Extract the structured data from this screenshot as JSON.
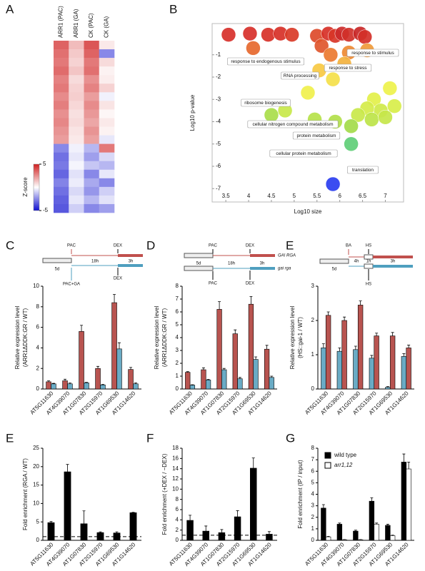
{
  "chart_data": [
    {
      "type": "heatmap",
      "panel": "A",
      "x": [
        "ARR1 (PAC)",
        "ARR1 (GA)",
        "CK (PAC)",
        "CK (GA)"
      ],
      "values": [
        [
          3.5,
          3.2,
          3,
          3.3,
          2.8,
          3,
          2.6,
          2.9,
          2.5,
          2.7,
          2.4,
          2.2,
          -2.5,
          -3,
          -2.8,
          -3.2,
          -2.6,
          -3,
          -3.3,
          -3.5
        ],
        [
          1.5,
          1.2,
          1,
          1.3,
          0.8,
          1,
          1.1,
          0.9,
          0.7,
          0.8,
          0.6,
          0.5,
          -0.3,
          -0.5,
          -0.2,
          -0.6,
          -0.4,
          -0.8,
          -0.5,
          -1
        ],
        [
          3.8,
          3.5,
          3,
          3.2,
          2.5,
          2.8,
          2.2,
          2.6,
          2.3,
          2,
          2.4,
          2.1,
          -1.5,
          -2,
          -1.2,
          -2.5,
          -1.8,
          -2.2,
          -1.5,
          -2.5
        ],
        [
          0.5,
          -2.5,
          0.8,
          0.3,
          0.4,
          1,
          -0.3,
          0.6,
          0.2,
          0.5,
          0.3,
          -0.5,
          3,
          -0.8,
          -1.5,
          -0.5,
          -2.5,
          -1,
          -0.6,
          -2
        ]
      ],
      "colorbar": {
        "label": "Z-score",
        "lim": [
          -5,
          5
        ],
        "ticks": [
          5,
          -5
        ],
        "colors": [
          "#1010d0",
          "#ffffff",
          "#d02020"
        ]
      }
    },
    {
      "type": "scatter",
      "panel": "B",
      "xlabel": "Log10 size",
      "ylabel": "Log10 p-value",
      "x": [
        3.56,
        4.03,
        4.43,
        4.7,
        4.95,
        5.5,
        5.75,
        5.9,
        6.05,
        6.2,
        6.45,
        6.55,
        4.1,
        5.6,
        5.8,
        6.2,
        6.6,
        6.1,
        5.55,
        5.85,
        7.1,
        6.75,
        7.2,
        6.9,
        6.6,
        6.4,
        6.7,
        7.0,
        5.3,
        5.45,
        4.8,
        4.5,
        6.25,
        5.9,
        6.25,
        5.85
      ],
      "y": [
        -0.1,
        -0.05,
        -0.1,
        -0.05,
        -0.1,
        -0.15,
        -0.05,
        -0.15,
        -0.05,
        -0.1,
        -0.05,
        -0.2,
        -0.7,
        -0.6,
        -1.0,
        -0.9,
        -0.8,
        -1.4,
        -1.7,
        -2.1,
        -2.5,
        -3.0,
        -3.3,
        -3.5,
        -3.4,
        -3.7,
        -3.9,
        -3.8,
        -2.7,
        -3.9,
        -3.5,
        -3.7,
        -4.2,
        -4.0,
        -5.0,
        -6.8
      ],
      "colors": [
        "#d7302a",
        "#d7302a",
        "#d73027",
        "#d73027",
        "#d93a27",
        "#dd4a2a",
        "#d73027",
        "#d83527",
        "#cc2a2a",
        "#d03029",
        "#c82626",
        "#d43028",
        "#e6682e",
        "#e0562c",
        "#eb7a30",
        "#ee8a33",
        "#f09a3a",
        "#f3b23e",
        "#f7c943",
        "#f4e04a",
        "#eef24c",
        "#e3f04a",
        "#d8ee4a",
        "#cfe94a",
        "#d5ec4a",
        "#c9e84a",
        "#bde449",
        "#c5e64a",
        "#f0f04c",
        "#b6e24a",
        "#c8e84a",
        "#a9dd4a",
        "#a4db4a",
        "#b2e04a",
        "#5fce77",
        "#2a3ef0"
      ],
      "xlim": [
        3.2,
        7.4
      ],
      "ylim": [
        -7.6,
        0.4
      ],
      "xticks": [
        3.5,
        4,
        4.5,
        5,
        5.5,
        6,
        6.5,
        7
      ],
      "yticks": [
        -1,
        -2,
        -3,
        -4,
        -5,
        -6,
        -7
      ],
      "annotations": [
        "response to endogenous stimulus",
        "response to stimulus",
        "response to stress",
        "RNA processing",
        "ribosome biogenesis",
        "cellular nitrogen compound metabolism",
        "protein metabolism",
        "cellular protein metabolism",
        "translation"
      ]
    },
    {
      "type": "bar",
      "panel": "C",
      "ylabel": [
        "Relative expression level",
        "(ARR1ΔDDK:GR / WT)"
      ],
      "schematic": [
        "PAC",
        "DEX",
        "5d",
        "18h",
        "3h",
        "PAC+GA",
        "DEX"
      ],
      "categories": [
        "AT5G11630",
        "AT4G39070",
        "AT1G07830",
        "AT2G15970",
        "AT1G69530",
        "AT1G14620"
      ],
      "series": [
        {
          "color": "#b85450",
          "values": [
            0.7,
            0.8,
            5.6,
            2.0,
            8.4,
            1.9
          ],
          "errors": [
            0.1,
            0.15,
            0.6,
            0.2,
            0.8,
            0.2
          ]
        },
        {
          "color": "#6aabc5",
          "values": [
            0.5,
            0.5,
            0.6,
            0.4,
            3.9,
            0.5
          ],
          "errors": [
            0.05,
            0.08,
            0.05,
            0.05,
            0.6,
            0.1
          ]
        }
      ],
      "ylim": [
        0,
        10
      ],
      "yticks": [
        0,
        2,
        4,
        6,
        8,
        10
      ]
    },
    {
      "type": "bar",
      "panel": "D",
      "ylabel": [
        "Relative expression level",
        "(ARR1ΔDDK:GR / WT)"
      ],
      "schematic": [
        "PAC",
        "DEX",
        "GAI RGA",
        "5d",
        "18h",
        "3h",
        "gai rga",
        "PAC",
        "DEX"
      ],
      "categories": [
        "AT5G11630",
        "AT4G39070",
        "AT1G07830",
        "AT2G15970",
        "AT1G69530",
        "AT1G14620"
      ],
      "series": [
        {
          "color": "#b85450",
          "values": [
            1.3,
            1.5,
            6.2,
            4.3,
            6.6,
            3.1
          ],
          "errors": [
            0.05,
            0.15,
            0.6,
            0.3,
            0.6,
            0.3
          ]
        },
        {
          "color": "#6aabc5",
          "values": [
            0.3,
            0.7,
            1.5,
            0.8,
            2.3,
            0.9
          ],
          "errors": [
            0.03,
            0.05,
            0.1,
            0.1,
            0.2,
            0.1
          ]
        }
      ],
      "ylim": [
        0,
        8
      ],
      "yticks": [
        0,
        1,
        2,
        3,
        4,
        5,
        6,
        7,
        8
      ]
    },
    {
      "type": "bar",
      "panel": "E",
      "ylabel": [
        "Relative expression level",
        "(HS::gai-1 / WT)"
      ],
      "schematic": [
        "BA",
        "HS",
        "5d",
        "4h",
        "1h",
        "3h",
        "HS"
      ],
      "categories": [
        "AT5G11630",
        "AT4G39070",
        "AT1G07830",
        "AT2G15970",
        "AT1G69530",
        "AT1G14620"
      ],
      "series": [
        {
          "color": "#6aabc5",
          "values": [
            1.2,
            1.1,
            1.15,
            0.9,
            0.05,
            0.95
          ],
          "errors": [
            0.12,
            0.1,
            0.1,
            0.08,
            0.02,
            0.08
          ]
        },
        {
          "color": "#b85450",
          "values": [
            2.15,
            2.0,
            2.45,
            1.55,
            1.55,
            1.2
          ],
          "errors": [
            0.1,
            0.1,
            0.12,
            0.08,
            0.1,
            0.08
          ]
        }
      ],
      "ylim": [
        0,
        3
      ],
      "yticks": [
        0,
        1,
        2,
        3
      ]
    },
    {
      "type": "bar",
      "panel": "E",
      "ylabel": [
        "Fold enrichment (RGA / WT)"
      ],
      "categories": [
        "AT5G11630",
        "AT4G39070",
        "AT1G07830",
        "AT2G15970",
        "AT1G69530",
        "AT1G14620"
      ],
      "series": [
        {
          "color": "#000000",
          "values": [
            4.8,
            18.6,
            4.5,
            2.1,
            2.0,
            7.5
          ],
          "errors": [
            0.3,
            2,
            3.5,
            0.2,
            0.3,
            0.1
          ]
        }
      ],
      "reference_line": 1,
      "ylim": [
        0,
        25
      ],
      "yticks": [
        0,
        5,
        10,
        15,
        20,
        25
      ]
    },
    {
      "type": "bar",
      "panel": "F",
      "ylabel": [
        "Fold enrichment (+DEX / −DEX)"
      ],
      "categories": [
        "AT5G11630",
        "AT4G39070",
        "AT1G07830",
        "AT2G15970",
        "AT1G69530",
        "AT1G14620"
      ],
      "series": [
        {
          "color": "#000000",
          "values": [
            3.9,
            1.8,
            1.5,
            4.6,
            14.1,
            1.2
          ],
          "errors": [
            1,
            1,
            0.6,
            1.2,
            2,
            0.5
          ]
        }
      ],
      "reference_line": 1,
      "ylim": [
        0,
        18
      ],
      "yticks": [
        0,
        2,
        4,
        6,
        8,
        10,
        12,
        14,
        16,
        18
      ]
    },
    {
      "type": "bar",
      "panel": "G",
      "ylabel": [
        "Fold enrichment (IP / input)"
      ],
      "categories": [
        "AT5G11630",
        "AT4G39070",
        "AT1G07830",
        "AT2G15970",
        "AT1G69530",
        "AT1G14620"
      ],
      "series": [
        {
          "name": "wild type",
          "color": "#000000",
          "values": [
            2.8,
            1.4,
            0.8,
            3.4,
            1.3,
            6.8
          ],
          "errors": [
            0.3,
            0.1,
            0.08,
            0.3,
            0.1,
            0.7
          ]
        },
        {
          "name": "arr1,12",
          "color": "#ffffff",
          "values": [
            0.3,
            0.05,
            0.05,
            1.4,
            0.4,
            6.2
          ],
          "errors": [
            0.05,
            0.02,
            0.02,
            0.1,
            0.05,
            0.6
          ]
        }
      ],
      "ylim": [
        0,
        8
      ],
      "yticks": [
        0,
        1,
        2,
        3,
        4,
        5,
        6,
        7,
        8
      ]
    }
  ]
}
